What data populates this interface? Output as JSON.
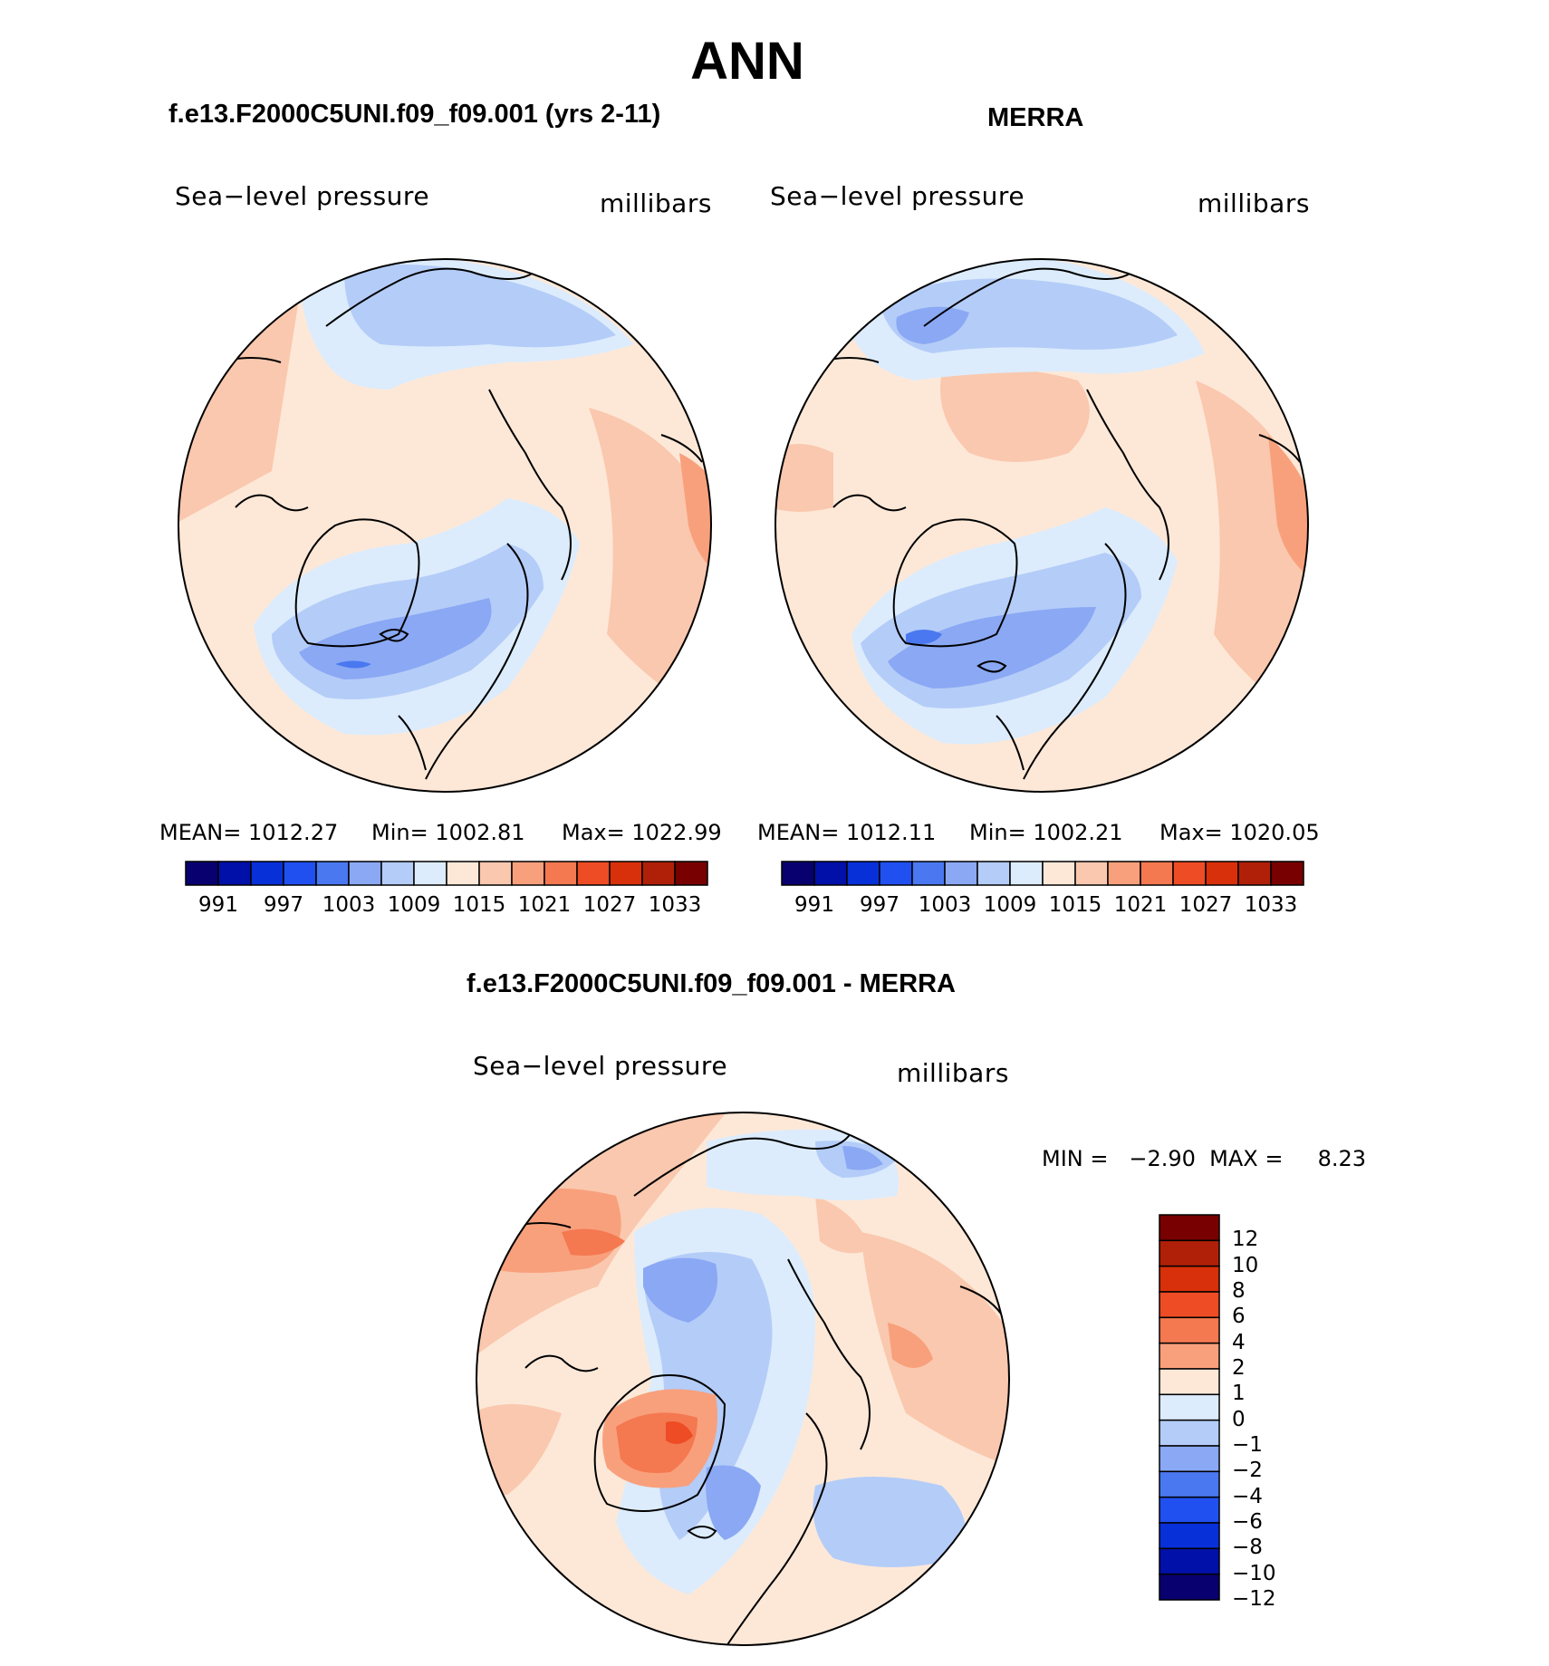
{
  "title": "ANN",
  "panels": [
    {
      "id": "model",
      "title": "f.e13.F2000C5UNI.f09_f09.001 (yrs 2-11)",
      "field_label": "Sea−level pressure",
      "units_label": "millibars",
      "stats": {
        "mean": "MEAN= 1012.27",
        "min": "Min= 1002.81",
        "max": "Max= 1022.99"
      }
    },
    {
      "id": "obs",
      "title": "MERRA",
      "field_label": "Sea−level pressure",
      "units_label": "millibars",
      "stats": {
        "mean": "MEAN= 1012.11",
        "min": "Min= 1002.21",
        "max": "Max= 1020.05"
      }
    }
  ],
  "abs_colorbar": {
    "colors": [
      "#08006e",
      "#0010a8",
      "#0830d8",
      "#2050f0",
      "#4a78f0",
      "#8aa8f4",
      "#b4ccf8",
      "#dcecfc",
      "#fde8d8",
      "#fac8ae",
      "#f8a07c",
      "#f47850",
      "#ee4c24",
      "#d8300a",
      "#b02008",
      "#780000"
    ],
    "tick_labels": [
      "991",
      "997",
      "1003",
      "1009",
      "1015",
      "1021",
      "1027",
      "1033"
    ]
  },
  "diff_panel": {
    "title": "f.e13.F2000C5UNI.f09_f09.001 - MERRA",
    "field_label": "Sea−level pressure",
    "units_label": "millibars",
    "stats": "MIN =   −2.90  MAX =     8.23",
    "colorbar": {
      "colors": [
        "#780000",
        "#b02008",
        "#d8300a",
        "#ee4c24",
        "#f47850",
        "#f8a07c",
        "#fde8d8",
        "#dcecfc",
        "#b4ccf8",
        "#8aa8f4",
        "#4a78f0",
        "#2050f0",
        "#0830d8",
        "#0010a8",
        "#08006e"
      ],
      "tick_labels": [
        "12",
        "10",
        "8",
        "6",
        "4",
        "2",
        "1",
        "0",
        "−1",
        "−2",
        "−4",
        "−6",
        "−8",
        "−10",
        "−12"
      ]
    }
  }
}
